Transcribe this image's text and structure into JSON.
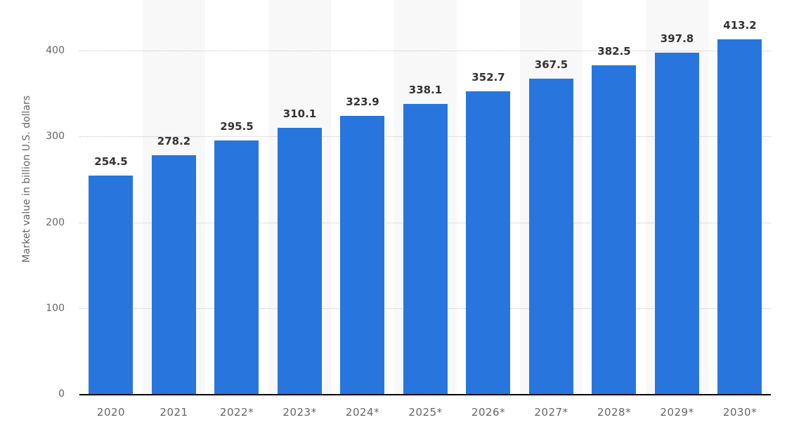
{
  "chart_data": {
    "type": "bar",
    "title": "",
    "xlabel": "",
    "ylabel": "Market value in billion U.S. dollars",
    "categories": [
      "2020",
      "2021",
      "2022*",
      "2023*",
      "2024*",
      "2025*",
      "2026*",
      "2027*",
      "2028*",
      "2029*",
      "2030*"
    ],
    "values": [
      254.5,
      278.2,
      295.5,
      310.1,
      323.9,
      338.1,
      352.7,
      367.5,
      382.5,
      397.8,
      413.2
    ],
    "value_labels": [
      "254.5",
      "278.2",
      "295.5",
      "310.1",
      "323.9",
      "338.1",
      "352.7",
      "367.5",
      "382.5",
      "397.8",
      "413.2"
    ],
    "yticks": [
      0,
      100,
      200,
      300,
      400
    ],
    "ytick_labels": [
      "0",
      "100",
      "200",
      "300",
      "400"
    ],
    "ylim": [
      0,
      400
    ],
    "grid": true,
    "legend": null,
    "bar_color": "#2876dd"
  }
}
